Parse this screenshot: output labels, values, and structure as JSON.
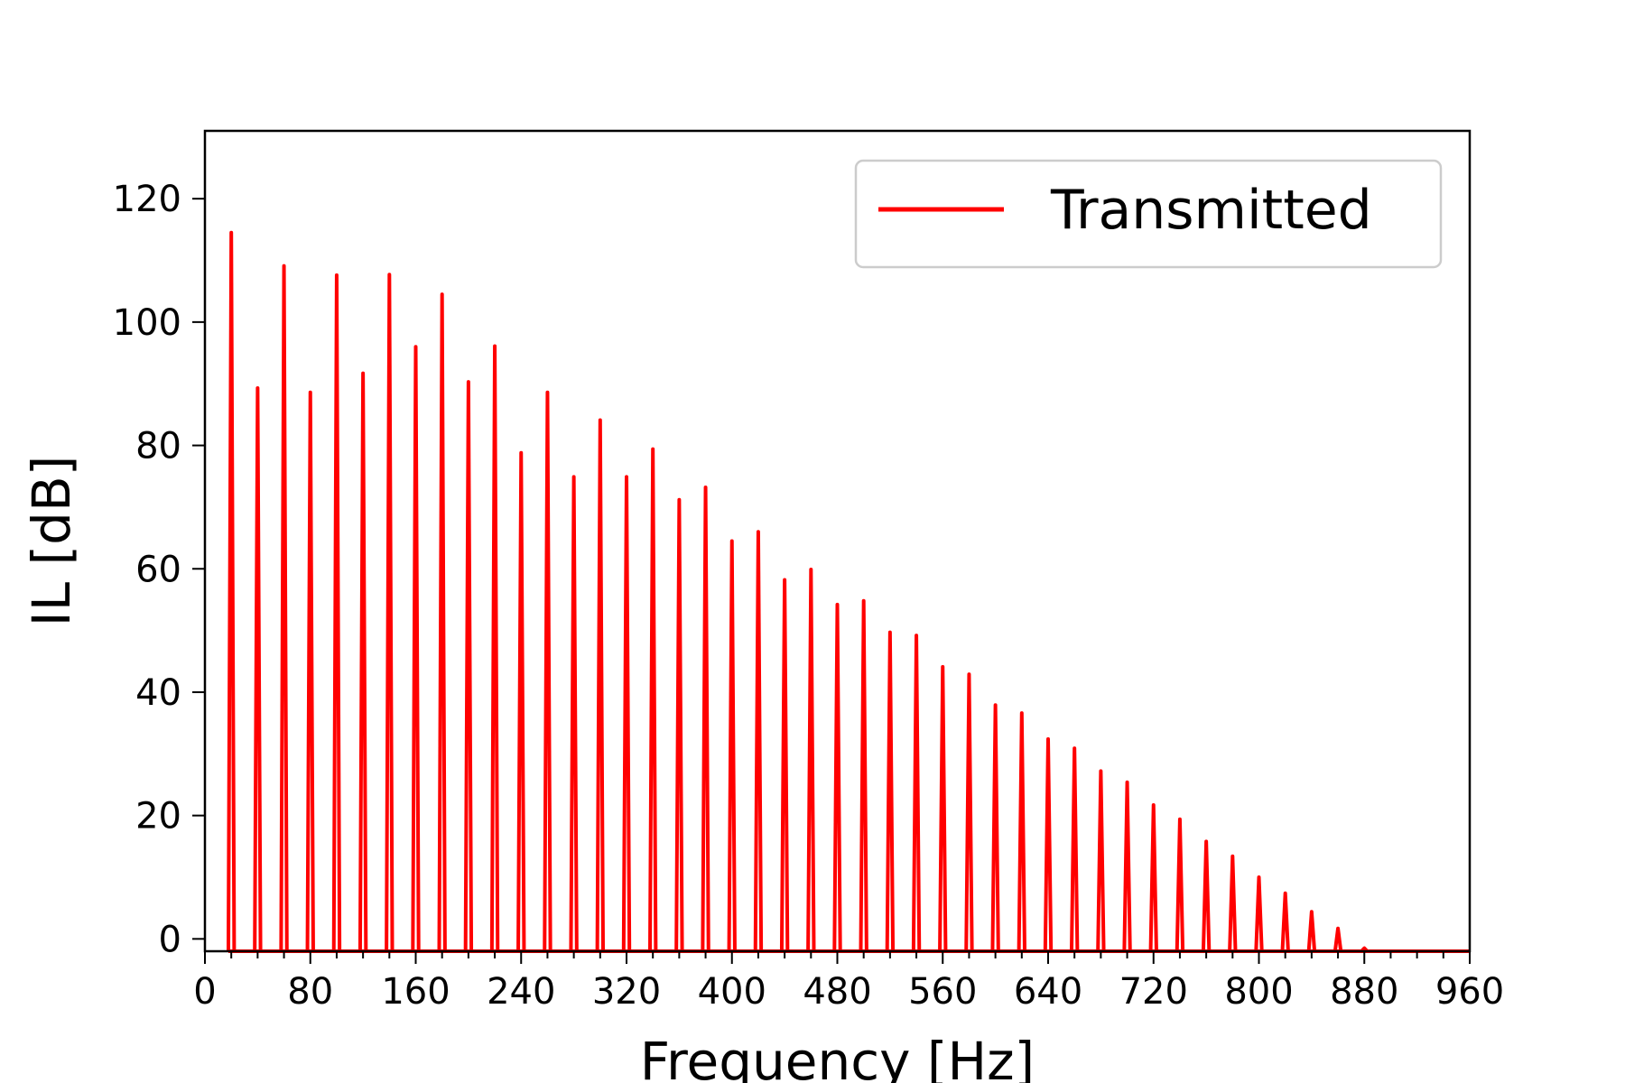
{
  "chart_data": {
    "type": "line",
    "title": "",
    "xlabel": "Frequency [Hz]",
    "ylabel": "IL [dB]",
    "xlim": [
      0,
      960
    ],
    "ylim": [
      -2,
      131
    ],
    "xticks": [
      0,
      80,
      160,
      240,
      320,
      400,
      480,
      560,
      640,
      720,
      800,
      880,
      960
    ],
    "x_minor_tick_step": 20,
    "yticks": [
      0,
      20,
      40,
      60,
      80,
      100,
      120
    ],
    "grid": false,
    "legend_position": "top-right",
    "series": [
      {
        "name": "Transmitted",
        "color": "#ff0000",
        "line_style": "solid",
        "peak_frequencies_hz": [
          20,
          40,
          60,
          80,
          100,
          120,
          140,
          160,
          180,
          200,
          220,
          240,
          260,
          280,
          300,
          320,
          340,
          360,
          380,
          400,
          420,
          440,
          460,
          480,
          500,
          520,
          540,
          560,
          580,
          600,
          620,
          640,
          660,
          680,
          700,
          720,
          740,
          760,
          780,
          800,
          820,
          840,
          860,
          880
        ],
        "peak_il_db": [
          114.5,
          89.3,
          109.1,
          88.6,
          107.6,
          91.7,
          107.7,
          96.0,
          104.5,
          90.3,
          96.1,
          78.8,
          88.6,
          74.9,
          84.1,
          74.9,
          79.4,
          71.2,
          73.2,
          64.5,
          66.0,
          58.2,
          59.9,
          54.2,
          54.8,
          49.7,
          49.2,
          44.1,
          42.9,
          37.9,
          36.6,
          32.4,
          30.9,
          27.2,
          25.4,
          21.7,
          19.4,
          15.8,
          13.4,
          10.0,
          7.4,
          4.4,
          1.7,
          -1.5
        ],
        "baseline_il_db": -2
      }
    ]
  },
  "colors": {
    "series_red": "#ff0000",
    "axes": "#000000",
    "legend_border": "#cccccc"
  }
}
